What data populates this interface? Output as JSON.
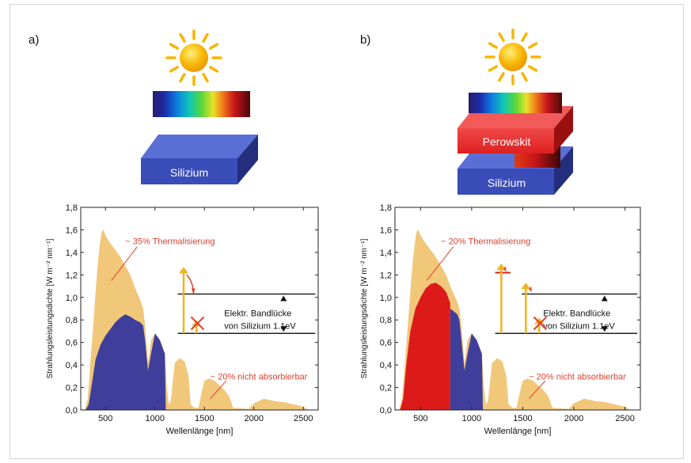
{
  "panels": [
    {
      "label": "a)",
      "block_labels": [
        "Silizium"
      ],
      "annotations": {
        "thermal": "~ 35% Thermalisierung",
        "not_absorbed": "~ 20% nicht absorbierbar",
        "bandgap_line1": "Elektr. Bandlücke",
        "bandgap_line2": "von Silizium 1.1eV"
      }
    },
    {
      "label": "b)",
      "block_labels": [
        "Perowskit",
        "Silizium"
      ],
      "annotations": {
        "thermal": "~ 20% Thermalisierung",
        "not_absorbed": "~ 20% nicht absorbierbar",
        "bandgap_line1": "Elektr. Bandlücke",
        "bandgap_line2": "von Silizium 1.1eV"
      }
    }
  ],
  "colors": {
    "spectrum": "#f1c77a",
    "silicon": "#3f3f9b",
    "perovskite": "#dd1a1a",
    "annotation": "#e0402c",
    "arrow": "#f2b31b",
    "sun": "#f7b500"
  },
  "chart_data": [
    {
      "type": "area",
      "xlabel": "Wellenlänge [nm]",
      "ylabel": "Strahlungsleistungsdichte [W m⁻² nm⁻¹]",
      "xlim": [
        250,
        2650
      ],
      "ylim": [
        0,
        1.8
      ],
      "xticks": [
        500,
        1000,
        1500,
        2000,
        2500
      ],
      "yticks": [
        "0,0",
        "0,2",
        "0,4",
        "0,6",
        "0,8",
        "1,0",
        "1,2",
        "1,4",
        "1,6",
        "1,8"
      ],
      "series": [
        {
          "name": "",
          "color": "#f1c77a",
          "points": [
            [
              290,
              0
            ],
            [
              320,
              0.1
            ],
            [
              350,
              0.45
            ],
            [
              380,
              0.8
            ],
            [
              400,
              1.05
            ],
            [
              420,
              1.28
            ],
            [
              440,
              1.45
            ],
            [
              460,
              1.58
            ],
            [
              480,
              1.6
            ],
            [
              500,
              1.55
            ],
            [
              520,
              1.52
            ],
            [
              550,
              1.48
            ],
            [
              600,
              1.42
            ],
            [
              650,
              1.36
            ],
            [
              700,
              1.28
            ],
            [
              750,
              1.2
            ],
            [
              800,
              1.08
            ],
            [
              850,
              0.98
            ],
            [
              880,
              0.9
            ],
            [
              900,
              0.75
            ],
            [
              930,
              0.42
            ],
            [
              960,
              0.62
            ],
            [
              1000,
              0.68
            ],
            [
              1050,
              0.62
            ],
            [
              1100,
              0.5
            ],
            [
              1120,
              0.2
            ],
            [
              1140,
              0.05
            ],
            [
              1160,
              0.08
            ],
            [
              1200,
              0.42
            ],
            [
              1250,
              0.46
            ],
            [
              1300,
              0.43
            ],
            [
              1340,
              0.3
            ],
            [
              1360,
              0.05
            ],
            [
              1400,
              0.02
            ],
            [
              1440,
              0.02
            ],
            [
              1470,
              0.15
            ],
            [
              1500,
              0.26
            ],
            [
              1550,
              0.28
            ],
            [
              1600,
              0.26
            ],
            [
              1650,
              0.22
            ],
            [
              1700,
              0.18
            ],
            [
              1750,
              0.12
            ],
            [
              1790,
              0.02
            ],
            [
              1950,
              0.01
            ],
            [
              2000,
              0.06
            ],
            [
              2100,
              0.1
            ],
            [
              2200,
              0.08
            ],
            [
              2300,
              0.07
            ],
            [
              2400,
              0.05
            ],
            [
              2500,
              0.03
            ],
            [
              2550,
              0
            ]
          ]
        },
        {
          "name": "",
          "color": "#3f3f9b",
          "points": [
            [
              300,
              0
            ],
            [
              330,
              0.05
            ],
            [
              360,
              0.22
            ],
            [
              400,
              0.45
            ],
            [
              450,
              0.58
            ],
            [
              500,
              0.66
            ],
            [
              550,
              0.72
            ],
            [
              600,
              0.78
            ],
            [
              650,
              0.82
            ],
            [
              700,
              0.85
            ],
            [
              750,
              0.83
            ],
            [
              800,
              0.8
            ],
            [
              850,
              0.78
            ],
            [
              880,
              0.75
            ],
            [
              900,
              0.62
            ],
            [
              930,
              0.35
            ],
            [
              960,
              0.5
            ],
            [
              1000,
              0.68
            ],
            [
              1050,
              0.62
            ],
            [
              1100,
              0.5
            ],
            [
              1110,
              0
            ]
          ]
        }
      ]
    },
    {
      "type": "area",
      "xlabel": "Wellenlänge [nm]",
      "ylabel": "Strahlungsleistungsdichte [W m⁻² nm⁻¹]",
      "xlim": [
        250,
        2650
      ],
      "ylim": [
        0,
        1.8
      ],
      "xticks": [
        500,
        1000,
        1500,
        2000,
        2500
      ],
      "yticks": [
        "0,0",
        "0,2",
        "0,4",
        "0,6",
        "0,8",
        "1,0",
        "1,2",
        "1,4",
        "1,6",
        "1,8"
      ],
      "series": [
        {
          "name": "",
          "color": "#f1c77a",
          "points": [
            [
              290,
              0
            ],
            [
              320,
              0.1
            ],
            [
              350,
              0.45
            ],
            [
              380,
              0.8
            ],
            [
              400,
              1.05
            ],
            [
              420,
              1.28
            ],
            [
              440,
              1.45
            ],
            [
              460,
              1.58
            ],
            [
              480,
              1.6
            ],
            [
              500,
              1.55
            ],
            [
              520,
              1.52
            ],
            [
              550,
              1.48
            ],
            [
              600,
              1.42
            ],
            [
              650,
              1.36
            ],
            [
              700,
              1.28
            ],
            [
              750,
              1.2
            ],
            [
              800,
              1.08
            ],
            [
              850,
              0.98
            ],
            [
              880,
              0.9
            ],
            [
              900,
              0.75
            ],
            [
              930,
              0.42
            ],
            [
              960,
              0.62
            ],
            [
              1000,
              0.68
            ],
            [
              1050,
              0.62
            ],
            [
              1100,
              0.5
            ],
            [
              1120,
              0.2
            ],
            [
              1140,
              0.05
            ],
            [
              1160,
              0.08
            ],
            [
              1200,
              0.42
            ],
            [
              1250,
              0.46
            ],
            [
              1300,
              0.43
            ],
            [
              1340,
              0.3
            ],
            [
              1360,
              0.05
            ],
            [
              1400,
              0.02
            ],
            [
              1440,
              0.02
            ],
            [
              1470,
              0.15
            ],
            [
              1500,
              0.26
            ],
            [
              1550,
              0.28
            ],
            [
              1600,
              0.26
            ],
            [
              1650,
              0.22
            ],
            [
              1700,
              0.18
            ],
            [
              1750,
              0.12
            ],
            [
              1790,
              0.02
            ],
            [
              1950,
              0.01
            ],
            [
              2000,
              0.06
            ],
            [
              2100,
              0.1
            ],
            [
              2200,
              0.08
            ],
            [
              2300,
              0.07
            ],
            [
              2400,
              0.05
            ],
            [
              2500,
              0.03
            ],
            [
              2550,
              0
            ]
          ]
        },
        {
          "name": "",
          "color": "#3f3f9b",
          "points": [
            [
              790,
              0
            ],
            [
              790,
              0.9
            ],
            [
              820,
              0.88
            ],
            [
              860,
              0.85
            ],
            [
              880,
              0.8
            ],
            [
              900,
              0.62
            ],
            [
              930,
              0.35
            ],
            [
              960,
              0.5
            ],
            [
              1000,
              0.68
            ],
            [
              1050,
              0.62
            ],
            [
              1100,
              0.5
            ],
            [
              1110,
              0
            ]
          ]
        },
        {
          "name": "",
          "color": "#dd1a1a",
          "points": [
            [
              300,
              0
            ],
            [
              330,
              0.1
            ],
            [
              360,
              0.4
            ],
            [
              400,
              0.7
            ],
            [
              450,
              0.9
            ],
            [
              500,
              1.0
            ],
            [
              550,
              1.08
            ],
            [
              600,
              1.12
            ],
            [
              650,
              1.13
            ],
            [
              700,
              1.1
            ],
            [
              750,
              1.05
            ],
            [
              790,
              0.95
            ],
            [
              790,
              0
            ]
          ]
        }
      ]
    }
  ]
}
